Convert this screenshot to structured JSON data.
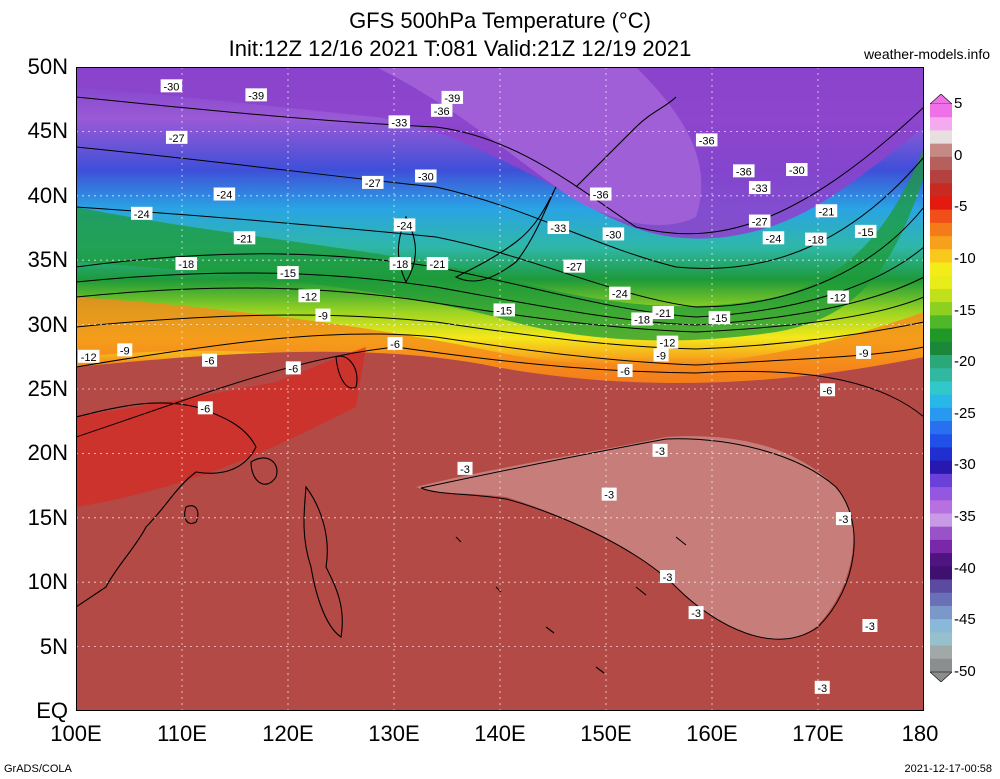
{
  "header": {
    "title": "GFS 500hPa Temperature (°C)",
    "subtitle": "Init:12Z 12/16 2021 T:081 Valid:21Z 12/19 2021",
    "source": "weather-models.info"
  },
  "map": {
    "projection": "lat-lon",
    "lon_range": [
      100,
      180
    ],
    "lat_range": [
      0,
      50
    ],
    "x_tick_labels": [
      "100E",
      "110E",
      "120E",
      "130E",
      "140E",
      "150E",
      "160E",
      "170E",
      "180"
    ],
    "y_tick_labels": [
      "50N",
      "45N",
      "40N",
      "35N",
      "30N",
      "25N",
      "20N",
      "15N",
      "10N",
      "5N",
      "EQ"
    ],
    "contour_labels": [
      {
        "text": "-30",
        "lon": 109,
        "lat": 48.5
      },
      {
        "text": "-39",
        "lon": 117,
        "lat": 47.8
      },
      {
        "text": "-39",
        "lon": 135.5,
        "lat": 47.6
      },
      {
        "text": "-36",
        "lon": 134.5,
        "lat": 46.6
      },
      {
        "text": "-33",
        "lon": 130.5,
        "lat": 45.7
      },
      {
        "text": "-27",
        "lon": 109.5,
        "lat": 44.5
      },
      {
        "text": "-36",
        "lon": 159.5,
        "lat": 44.3
      },
      {
        "text": "-36",
        "lon": 163,
        "lat": 41.9
      },
      {
        "text": "-30",
        "lon": 168,
        "lat": 42
      },
      {
        "text": "-33",
        "lon": 164.5,
        "lat": 40.6
      },
      {
        "text": "-27",
        "lon": 128,
        "lat": 41
      },
      {
        "text": "-30",
        "lon": 133,
        "lat": 41.5
      },
      {
        "text": "-36",
        "lon": 149.5,
        "lat": 40.1
      },
      {
        "text": "-24",
        "lon": 114,
        "lat": 40.1
      },
      {
        "text": "-24",
        "lon": 106.2,
        "lat": 38.6
      },
      {
        "text": "-21",
        "lon": 170.8,
        "lat": 38.8
      },
      {
        "text": "-27",
        "lon": 164.5,
        "lat": 38
      },
      {
        "text": "-24",
        "lon": 131,
        "lat": 37.7
      },
      {
        "text": "-33",
        "lon": 145.5,
        "lat": 37.5
      },
      {
        "text": "-30",
        "lon": 150.7,
        "lat": 37
      },
      {
        "text": "-15",
        "lon": 174.5,
        "lat": 37.2
      },
      {
        "text": "-24",
        "lon": 165.8,
        "lat": 36.7
      },
      {
        "text": "-18",
        "lon": 169.8,
        "lat": 36.6
      },
      {
        "text": "-21",
        "lon": 115.9,
        "lat": 36.7
      },
      {
        "text": "-18",
        "lon": 110.4,
        "lat": 34.7
      },
      {
        "text": "-18",
        "lon": 130.6,
        "lat": 34.7
      },
      {
        "text": "-21",
        "lon": 134.1,
        "lat": 34.7
      },
      {
        "text": "-27",
        "lon": 147,
        "lat": 34.5
      },
      {
        "text": "-15",
        "lon": 120,
        "lat": 34
      },
      {
        "text": "-24",
        "lon": 151.3,
        "lat": 32.4
      },
      {
        "text": "-12",
        "lon": 122,
        "lat": 32.2
      },
      {
        "text": "-12",
        "lon": 171.9,
        "lat": 32.1
      },
      {
        "text": "-15",
        "lon": 140.4,
        "lat": 31.1
      },
      {
        "text": "-21",
        "lon": 155.4,
        "lat": 30.9
      },
      {
        "text": "-9",
        "lon": 123.3,
        "lat": 30.7
      },
      {
        "text": "-15",
        "lon": 160.7,
        "lat": 30.5
      },
      {
        "text": "-18",
        "lon": 153.4,
        "lat": 30.4
      },
      {
        "text": "-6",
        "lon": 130.1,
        "lat": 28.5
      },
      {
        "text": "-12",
        "lon": 155.8,
        "lat": 28.6
      },
      {
        "text": "-12",
        "lon": 101.2,
        "lat": 27.5
      },
      {
        "text": "-9",
        "lon": 104.6,
        "lat": 28
      },
      {
        "text": "-9",
        "lon": 155.2,
        "lat": 27.6
      },
      {
        "text": "-9",
        "lon": 174.3,
        "lat": 27.8
      },
      {
        "text": "-6",
        "lon": 112.6,
        "lat": 27.2
      },
      {
        "text": "-6",
        "lon": 120.5,
        "lat": 26.6
      },
      {
        "text": "-6",
        "lon": 151.8,
        "lat": 26.4
      },
      {
        "text": "-6",
        "lon": 170.9,
        "lat": 24.9
      },
      {
        "text": "-6",
        "lon": 112.2,
        "lat": 23.5
      },
      {
        "text": "-3",
        "lon": 155.1,
        "lat": 20.2
      },
      {
        "text": "-3",
        "lon": 136.7,
        "lat": 18.8
      },
      {
        "text": "-3",
        "lon": 150.3,
        "lat": 16.8
      },
      {
        "text": "-3",
        "lon": 172.4,
        "lat": 14.9
      },
      {
        "text": "-3",
        "lon": 155.8,
        "lat": 10.4
      },
      {
        "text": "-3",
        "lon": 158.5,
        "lat": 7.6
      },
      {
        "text": "-3",
        "lon": 174.9,
        "lat": 6.6
      },
      {
        "text": "-3",
        "lon": 170.4,
        "lat": 1.8
      }
    ]
  },
  "colorbar": {
    "unit": "°C",
    "tick_labels": [
      "5",
      "0",
      "-5",
      "-10",
      "-15",
      "-20",
      "-25",
      "-30",
      "-35",
      "-40",
      "-45",
      "-50"
    ],
    "colors": [
      "#f070e8",
      "#f4aaee",
      "#e8e0e0",
      "#c58a86",
      "#b5605c",
      "#b54040",
      "#c82a22",
      "#e41a10",
      "#f05018",
      "#f47a1a",
      "#f6a01c",
      "#f8c81c",
      "#f4ec18",
      "#e8ec18",
      "#c0e01c",
      "#8cd020",
      "#50b828",
      "#209828",
      "#1a8838",
      "#2aa878",
      "#30b8a0",
      "#30c8c8",
      "#28b8e8",
      "#2898f0",
      "#2870f0",
      "#2050e8",
      "#2030d0",
      "#2818b0",
      "#6a40d8",
      "#9458e0",
      "#b870e0",
      "#c89ae6",
      "#9a52c8",
      "#7828a8",
      "#501480",
      "#401070",
      "#5a4aa0",
      "#6a70b8",
      "#7a98c8",
      "#8ab8d8",
      "#96c0cc",
      "#a0a8a8",
      "#8a8e8e"
    ]
  },
  "footer": {
    "left": "GrADS/COLA",
    "right": "2021-12-17-00:58"
  }
}
